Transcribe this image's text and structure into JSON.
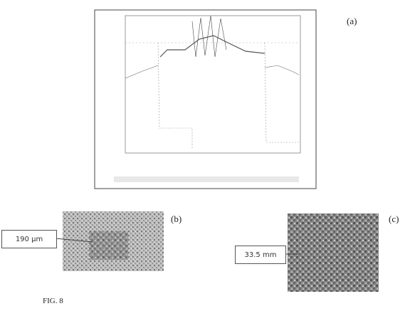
{
  "panels": [
    {
      "label": "(a)"
    },
    {
      "label": "(b)",
      "scale_bar": "190 μm"
    },
    {
      "label": "(c)",
      "scale_bar": "33.5 mm"
    }
  ],
  "caption": "FIG. 8"
}
